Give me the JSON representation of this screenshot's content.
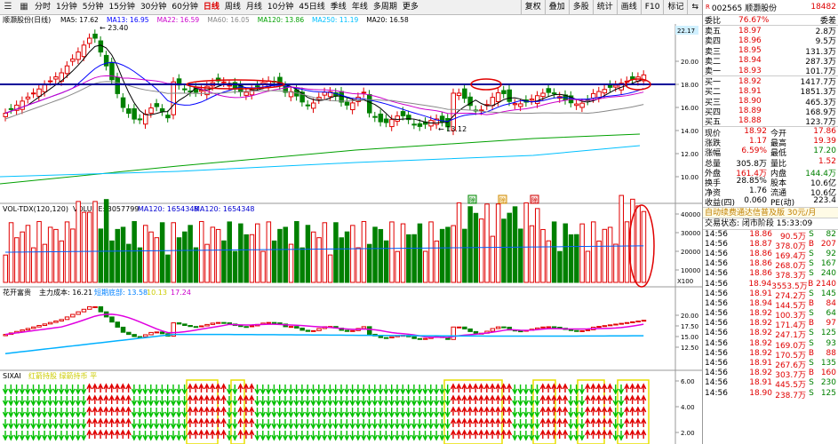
{
  "toolbar": {
    "tabs": [
      "分时",
      "1分钟",
      "5分钟",
      "15分钟",
      "30分钟",
      "60分钟",
      "日线",
      "周线",
      "月线",
      "10分钟",
      "45日线",
      "季线",
      "年线",
      "多周期",
      "更多"
    ],
    "active": "日线",
    "right": [
      "复权",
      "叠加",
      "多股",
      "统计",
      "画线",
      "F10",
      "标记"
    ]
  },
  "main_panel": {
    "title": "顺灏股份(日线)",
    "ma_labels": [
      {
        "text": "MA5: 17.62",
        "color": "#000000"
      },
      {
        "text": "MA13: 16.95",
        "color": "#0000ff"
      },
      {
        "text": "MA22: 16.59",
        "color": "#cc00cc"
      },
      {
        "text": "MA60: 16.05",
        "color": "#888888"
      },
      {
        "text": "MA120: 13.86",
        "color": "#00a000"
      },
      {
        "text": "MA250: 11.19",
        "color": "#00c0ff"
      },
      {
        "text": "MA20: 16.58",
        "color": "#000000"
      }
    ],
    "price_high": "23.40",
    "price_low": "13.12",
    "axis_top_label": "22.17",
    "y_ticks": [
      "20.00",
      "18.00",
      "16.00",
      "14.00",
      "12.00",
      "10.00"
    ],
    "event_marks": [
      "除",
      "除",
      "除"
    ]
  },
  "volume_panel": {
    "title": "VOL-TDX(120,120)",
    "volume": "VOLUME: 3057799",
    "ma1": "MA120: 1654348",
    "ma2": "MA120: 1654348",
    "y_ticks": [
      "40000",
      "30000",
      "20000",
      "10000"
    ],
    "unit": "X100"
  },
  "cost_panel": {
    "title": "花开富贵",
    "cost": "主力成本: 16.21",
    "short": "短期底部: 13.58",
    "ten": "10.13",
    "mid": "17.24",
    "y_ticks": [
      "20.00",
      "17.50",
      "15.00",
      "12.50"
    ],
    "chart_label": "SIXAI"
  },
  "signal_panel": {
    "title": "SIXAI",
    "legend": "红箭持股 绿箭持币 平",
    "y_ticks": [
      "6.00",
      "4.00",
      "2.00"
    ]
  },
  "quote": {
    "code": "002565 顺灏股份",
    "rank": "18482",
    "ratio_label": "委比",
    "ratio": "76.67%",
    "diff_label": "委差",
    "asks": [
      {
        "label": "卖五",
        "price": "18.97",
        "vol": "2.8万"
      },
      {
        "label": "卖四",
        "price": "18.96",
        "vol": "9.5万"
      },
      {
        "label": "卖三",
        "price": "18.95",
        "vol": "131.3万"
      },
      {
        "label": "卖二",
        "price": "18.94",
        "vol": "287.3万"
      },
      {
        "label": "卖一",
        "price": "18.93",
        "vol": "101.7万"
      }
    ],
    "bids": [
      {
        "label": "买一",
        "price": "18.92",
        "vol": "1417.7万"
      },
      {
        "label": "买二",
        "price": "18.91",
        "vol": "1851.3万"
      },
      {
        "label": "买三",
        "price": "18.90",
        "vol": "465.3万"
      },
      {
        "label": "买四",
        "price": "18.89",
        "vol": "168.9万"
      },
      {
        "label": "买五",
        "price": "18.88",
        "vol": "123.7万"
      }
    ],
    "stats": [
      {
        "a": "现价",
        "b": "18.92",
        "bc": "red",
        "c": "今开",
        "d": "17.86",
        "dc": "red"
      },
      {
        "a": "涨跌",
        "b": "1.17",
        "bc": "red",
        "c": "最高",
        "d": "19.39",
        "dc": "red"
      },
      {
        "a": "涨幅",
        "b": "6.59%",
        "bc": "red",
        "c": "最低",
        "d": "17.20",
        "dc": "green"
      },
      {
        "a": "总量",
        "b": "305.8万",
        "bc": "",
        "c": "量比",
        "d": "1.52",
        "dc": "red"
      },
      {
        "a": "外盘",
        "b": "161.4万",
        "bc": "red",
        "c": "内盘",
        "d": "144.4万",
        "dc": "green"
      },
      {
        "a": "换手",
        "b": "28.85%",
        "bc": "",
        "c": "股本",
        "d": "10.6亿",
        "dc": ""
      },
      {
        "a": "净资",
        "b": "1.76",
        "bc": "",
        "c": "流通",
        "d": "10.6亿",
        "dc": ""
      },
      {
        "a": "收益(四)",
        "b": "0.060",
        "bc": "",
        "c": "PE(动)",
        "d": "223.4",
        "dc": ""
      }
    ],
    "ad": "自动续费通达信普及版  30元/月",
    "status": "交易状态: 闭市阶段 15:33:09",
    "ticks": [
      {
        "t": "14:56",
        "p": "18.86",
        "v": "90.5万",
        "s": "S",
        "n": "82"
      },
      {
        "t": "14:56",
        "p": "18.87",
        "v": "378.0万",
        "s": "B",
        "n": "207"
      },
      {
        "t": "14:56",
        "p": "18.86",
        "v": "169.4万",
        "s": "S",
        "n": "92"
      },
      {
        "t": "14:56",
        "p": "18.86",
        "v": "268.0万",
        "s": "S",
        "n": "167"
      },
      {
        "t": "14:56",
        "p": "18.86",
        "v": "378.3万",
        "s": "S",
        "n": "240"
      },
      {
        "t": "14:56",
        "p": "18.94",
        "v": "3553.5万",
        "s": "B",
        "n": "2140"
      },
      {
        "t": "14:56",
        "p": "18.91",
        "v": "274.2万",
        "s": "S",
        "n": "145"
      },
      {
        "t": "14:56",
        "p": "18.94",
        "v": "144.5万",
        "s": "B",
        "n": "84"
      },
      {
        "t": "14:56",
        "p": "18.92",
        "v": "100.3万",
        "s": "S",
        "n": "64"
      },
      {
        "t": "14:56",
        "p": "18.92",
        "v": "171.4万",
        "s": "B",
        "n": "97"
      },
      {
        "t": "14:56",
        "p": "18.92",
        "v": "247.1万",
        "s": "S",
        "n": "125"
      },
      {
        "t": "14:56",
        "p": "18.92",
        "v": "169.0万",
        "s": "S",
        "n": "93"
      },
      {
        "t": "14:56",
        "p": "18.92",
        "v": "170.5万",
        "s": "B",
        "n": "88"
      },
      {
        "t": "14:56",
        "p": "18.91",
        "v": "267.6万",
        "s": "S",
        "n": "135"
      },
      {
        "t": "14:56",
        "p": "18.92",
        "v": "303.7万",
        "s": "B",
        "n": "160"
      },
      {
        "t": "14:56",
        "p": "18.91",
        "v": "445.5万",
        "s": "S",
        "n": "230"
      },
      {
        "t": "14:56",
        "p": "18.90",
        "v": "238.7万",
        "s": "S",
        "n": "125"
      }
    ]
  },
  "colors": {
    "up": "#e00000",
    "down": "#008000",
    "blue_line": "#000099",
    "circle": "#e00000"
  }
}
